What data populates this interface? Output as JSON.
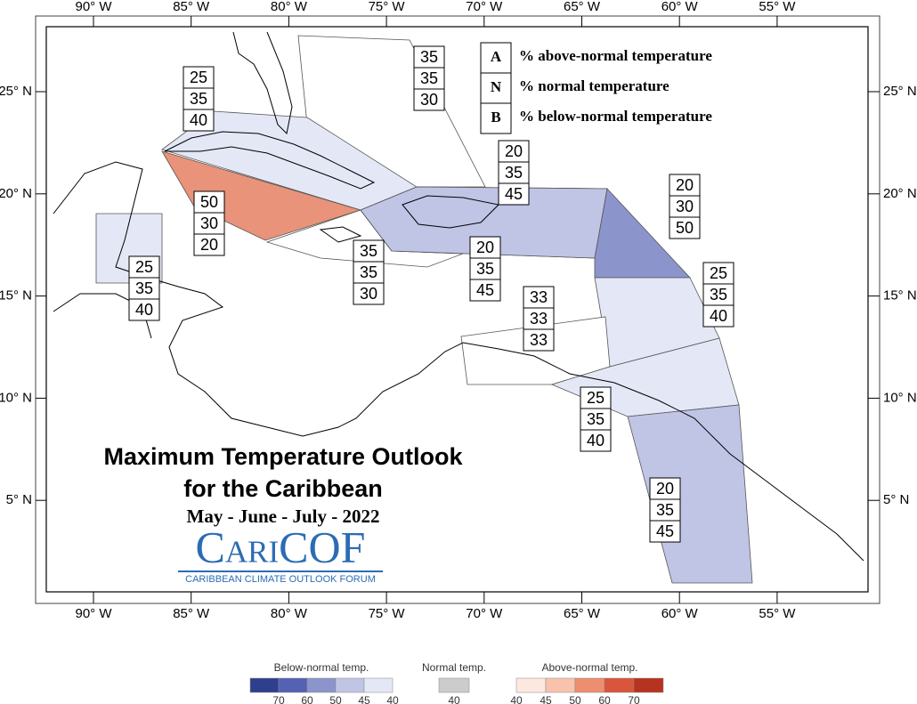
{
  "map": {
    "lon_labels": [
      "90° W",
      "85° W",
      "80° W",
      "75° W",
      "70° W",
      "65° W",
      "60° W",
      "55° W"
    ],
    "lat_labels": [
      "25° N",
      "20° N",
      "15° N",
      "10° N",
      "5° N"
    ],
    "key": [
      {
        "letter": "A",
        "text": "% above-normal temperature"
      },
      {
        "letter": "N",
        "text": "% normal temperature"
      },
      {
        "letter": "B",
        "text": "% below-normal temperature"
      }
    ],
    "regions": [
      {
        "values": [
          35,
          35,
          30
        ],
        "color": "#ffffff"
      },
      {
        "values": [
          25,
          35,
          40
        ],
        "color": "#e4e8f6"
      },
      {
        "values": [
          50,
          30,
          20
        ],
        "color": "#e8937a"
      },
      {
        "values": [
          25,
          35,
          40
        ],
        "color": "#e4e8f6"
      },
      {
        "values": [
          35,
          35,
          30
        ],
        "color": "#ffffff"
      },
      {
        "values": [
          20,
          35,
          45
        ],
        "color": "#c0c5e6"
      },
      {
        "values": [
          20,
          35,
          45
        ],
        "color": "#c0c5e6"
      },
      {
        "values": [
          20,
          30,
          50
        ],
        "color": "#8c94cc"
      },
      {
        "values": [
          25,
          35,
          40
        ],
        "color": "#e4e8f6"
      },
      {
        "values": [
          33,
          33,
          33
        ],
        "color": "#ffffff"
      },
      {
        "values": [
          25,
          35,
          40
        ],
        "color": "#e4e8f6"
      },
      {
        "values": [
          20,
          35,
          45
        ],
        "color": "#c0c5e6"
      }
    ],
    "title": [
      "Maximum Temperature Outlook",
      "for the Caribbean"
    ],
    "period": "May - June - July - 2022",
    "logo": {
      "name": "CariCOF",
      "subtitle": "CARIBBEAN CLIMATE OUTLOOK FORUM"
    }
  },
  "legend": {
    "below": {
      "label": "Below-normal temp.",
      "colors": [
        "#2e3f8e",
        "#5561b3",
        "#8c94cc",
        "#c0c5e6",
        "#e4e8f6"
      ],
      "ticks": [
        70,
        60,
        50,
        45,
        40
      ]
    },
    "normal": {
      "label": "Normal temp.",
      "colors": [
        "#cccccc"
      ],
      "ticks": [
        40
      ]
    },
    "above": {
      "label": "Above-normal temp.",
      "colors": [
        "#fde8e0",
        "#f8c2ad",
        "#ee8e70",
        "#d9553b",
        "#b5331f"
      ],
      "ticks": [
        40,
        45,
        50,
        60,
        70
      ]
    }
  }
}
